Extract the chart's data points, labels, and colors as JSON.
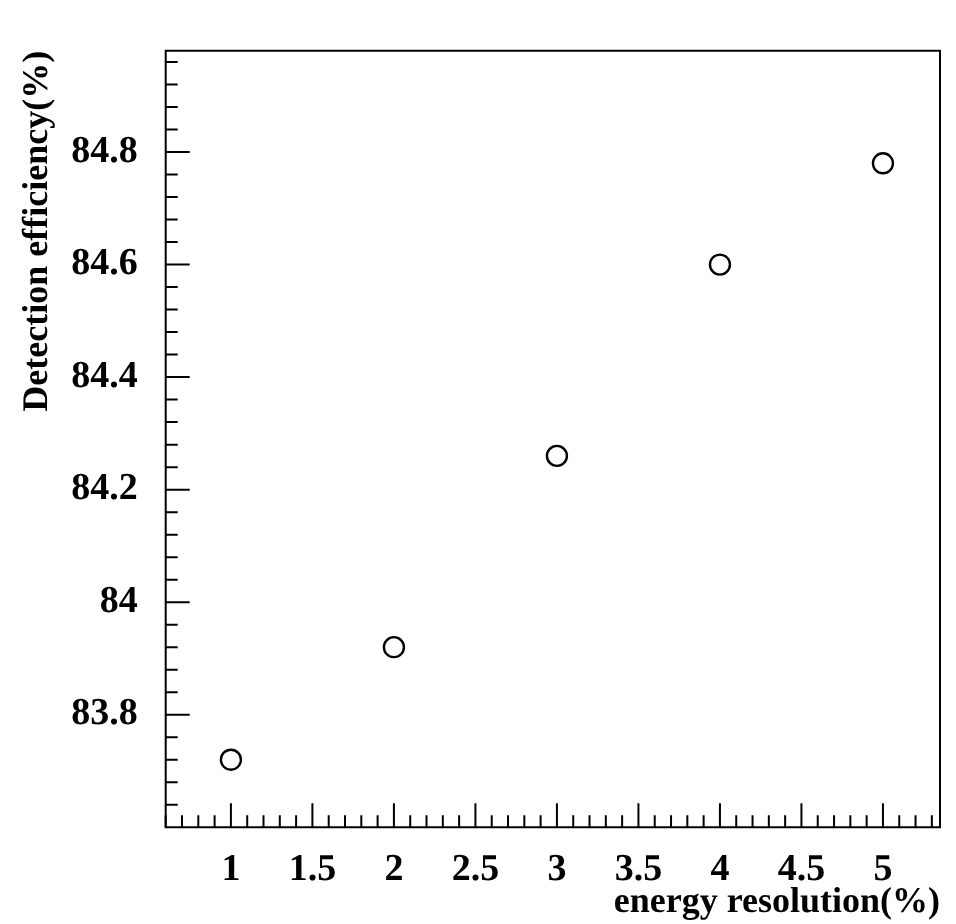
{
  "chart_data": {
    "type": "scatter",
    "xlabel": "energy resolution(%)",
    "ylabel": "Detection efficiency(%)",
    "x": [
      1,
      2,
      3,
      4,
      5
    ],
    "values": [
      83.72,
      83.92,
      84.26,
      84.6,
      84.78
    ],
    "color": "#000000",
    "marker": "circle",
    "grid": false,
    "legend": false,
    "xlim": [
      0.6,
      5.35
    ],
    "ylim": [
      83.6,
      84.98
    ],
    "xticks": [
      {
        "value": 0.6,
        "label": null
      },
      {
        "value": 0.7,
        "label": null
      },
      {
        "value": 0.8,
        "label": null
      },
      {
        "value": 0.9,
        "label": null
      },
      1,
      {
        "value": 1.1,
        "label": null
      },
      {
        "value": 1.2,
        "label": null
      },
      {
        "value": 1.3,
        "label": null
      },
      {
        "value": 1.4,
        "label": null
      },
      1.5,
      {
        "value": 1.6,
        "label": null
      },
      {
        "value": 1.7,
        "label": null
      },
      {
        "value": 1.8,
        "label": null
      },
      {
        "value": 1.9,
        "label": null
      },
      2,
      {
        "value": 2.1,
        "label": null
      },
      {
        "value": 2.2,
        "label": null
      },
      {
        "value": 2.3,
        "label": null
      },
      {
        "value": 2.4,
        "label": null
      },
      2.5,
      {
        "value": 2.6,
        "label": null
      },
      {
        "value": 2.7,
        "label": null
      },
      {
        "value": 2.8,
        "label": null
      },
      {
        "value": 2.9,
        "label": null
      },
      3,
      {
        "value": 3.1,
        "label": null
      },
      {
        "value": 3.2,
        "label": null
      },
      {
        "value": 3.3,
        "label": null
      },
      {
        "value": 3.4,
        "label": null
      },
      3.5,
      {
        "value": 3.6,
        "label": null
      },
      {
        "value": 3.7,
        "label": null
      },
      {
        "value": 3.8,
        "label": null
      },
      {
        "value": 3.9,
        "label": null
      },
      4,
      {
        "value": 4.1,
        "label": null
      },
      {
        "value": 4.2,
        "label": null
      },
      {
        "value": 4.3,
        "label": null
      },
      {
        "value": 4.4,
        "label": null
      },
      4.5,
      {
        "value": 4.6,
        "label": null
      },
      {
        "value": 4.7,
        "label": null
      },
      {
        "value": 4.8,
        "label": null
      },
      {
        "value": 4.9,
        "label": null
      },
      5,
      {
        "value": 5.1,
        "label": null
      },
      {
        "value": 5.2,
        "label": null
      },
      {
        "value": 5.3,
        "label": null
      }
    ],
    "yticks": [
      {
        "value": 83.64,
        "label": null
      },
      {
        "value": 83.68,
        "label": null
      },
      {
        "value": 83.72,
        "label": null
      },
      {
        "value": 83.76,
        "label": null
      },
      83.8,
      {
        "value": 83.84,
        "label": null
      },
      {
        "value": 83.88,
        "label": null
      },
      {
        "value": 83.92,
        "label": null
      },
      {
        "value": 83.96,
        "label": null
      },
      84,
      {
        "value": 84.04,
        "label": null
      },
      {
        "value": 84.08,
        "label": null
      },
      {
        "value": 84.12,
        "label": null
      },
      {
        "value": 84.16,
        "label": null
      },
      84.2,
      {
        "value": 84.24,
        "label": null
      },
      {
        "value": 84.28,
        "label": null
      },
      {
        "value": 84.32,
        "label": null
      },
      {
        "value": 84.36,
        "label": null
      },
      84.4,
      {
        "value": 84.44,
        "label": null
      },
      {
        "value": 84.48,
        "label": null
      },
      {
        "value": 84.52,
        "label": null
      },
      {
        "value": 84.56,
        "label": null
      },
      84.6,
      {
        "value": 84.64,
        "label": null
      },
      {
        "value": 84.68,
        "label": null
      },
      {
        "value": 84.72,
        "label": null
      },
      {
        "value": 84.76,
        "label": null
      },
      84.8,
      {
        "value": 84.84,
        "label": null
      },
      {
        "value": 84.88,
        "label": null
      },
      {
        "value": 84.92,
        "label": null
      },
      {
        "value": 84.96,
        "label": null
      }
    ]
  }
}
